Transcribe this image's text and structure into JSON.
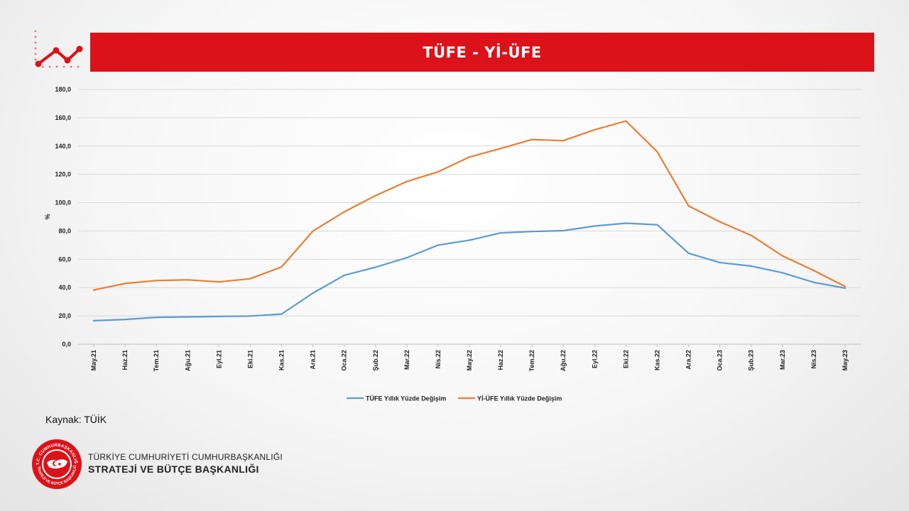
{
  "header": {
    "title": "TÜFE - Yİ-ÜFE"
  },
  "chart_data": {
    "type": "line",
    "title": "TÜFE - Yİ-ÜFE",
    "ylabel": "%",
    "xlabel": "",
    "ylim": [
      0,
      180
    ],
    "yticks": [
      "0,0",
      "20,0",
      "40,0",
      "60,0",
      "80,0",
      "100,0",
      "120,0",
      "140,0",
      "160,0",
      "180,0"
    ],
    "categories": [
      "May.21",
      "Haz.21",
      "Tem.21",
      "Ağu.21",
      "Eyl.21",
      "Eki.21",
      "Kas.21",
      "Ara.21",
      "Oca.22",
      "Şub.22",
      "Mar.22",
      "Nis.22",
      "May.22",
      "Haz.22",
      "Tem.22",
      "Ağu.22",
      "Eyl.22",
      "Eki.22",
      "Kas.22",
      "Ara.22",
      "Oca.23",
      "Şub.23",
      "Mar.23",
      "Nis.23",
      "May.23"
    ],
    "grid": true,
    "legend_position": "bottom",
    "series": [
      {
        "name": "TÜFE Yıllık Yüzde Değişim",
        "color": "#5b9bd5",
        "values": [
          16.6,
          17.5,
          19.0,
          19.3,
          19.6,
          19.9,
          21.3,
          36.1,
          48.7,
          54.4,
          61.1,
          70.0,
          73.5,
          78.6,
          79.6,
          80.2,
          83.5,
          85.5,
          84.4,
          64.3,
          57.7,
          55.2,
          50.5,
          43.7,
          39.6
        ]
      },
      {
        "name": "Yİ-ÜFE Yıllık Yüzde Değişim",
        "color": "#ed7d31",
        "values": [
          38.3,
          42.9,
          45.0,
          45.5,
          44.0,
          46.3,
          54.6,
          79.9,
          93.5,
          105.0,
          114.9,
          121.8,
          132.2,
          138.3,
          144.6,
          143.8,
          151.5,
          157.7,
          136.0,
          97.7,
          86.5,
          76.9,
          62.4,
          52.1,
          40.8
        ]
      }
    ]
  },
  "footer": {
    "source": "Kaynak: TÜİK",
    "org_line1": "TÜRKİYE CUMHURİYETİ CUMHURBAŞKANLIĞI",
    "org_line2": "STRATEJİ VE BÜTÇE BAŞKANLIĞI",
    "seal_text_top": "T.C. CUMHURBAŞKANLIĞI",
    "seal_text_bottom": "STRATEJİ VE BÜTÇE BAŞKANLIĞI"
  },
  "colors": {
    "brand_red": "#db1219",
    "tufe_line": "#5b9bd5",
    "yiufe_line": "#ed7d31"
  }
}
